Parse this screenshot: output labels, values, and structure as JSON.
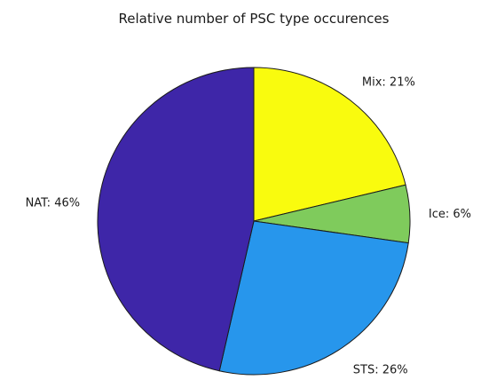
{
  "chart_data": {
    "type": "pie",
    "title": "Relative number of PSC type occurences",
    "start_angle_deg": 90,
    "direction": "clockwise",
    "slices": [
      {
        "name": "Mix",
        "value": 21,
        "label": "Mix: 21%",
        "color": "#f9fb0e"
      },
      {
        "name": "Ice",
        "value": 6,
        "label": "Ice: 6%",
        "color": "#7fcb5c"
      },
      {
        "name": "STS",
        "value": 26,
        "label": "STS: 26%",
        "color": "#2796ec"
      },
      {
        "name": "NAT",
        "value": 46,
        "label": "NAT: 46%",
        "color": "#3e26a8"
      }
    ]
  }
}
